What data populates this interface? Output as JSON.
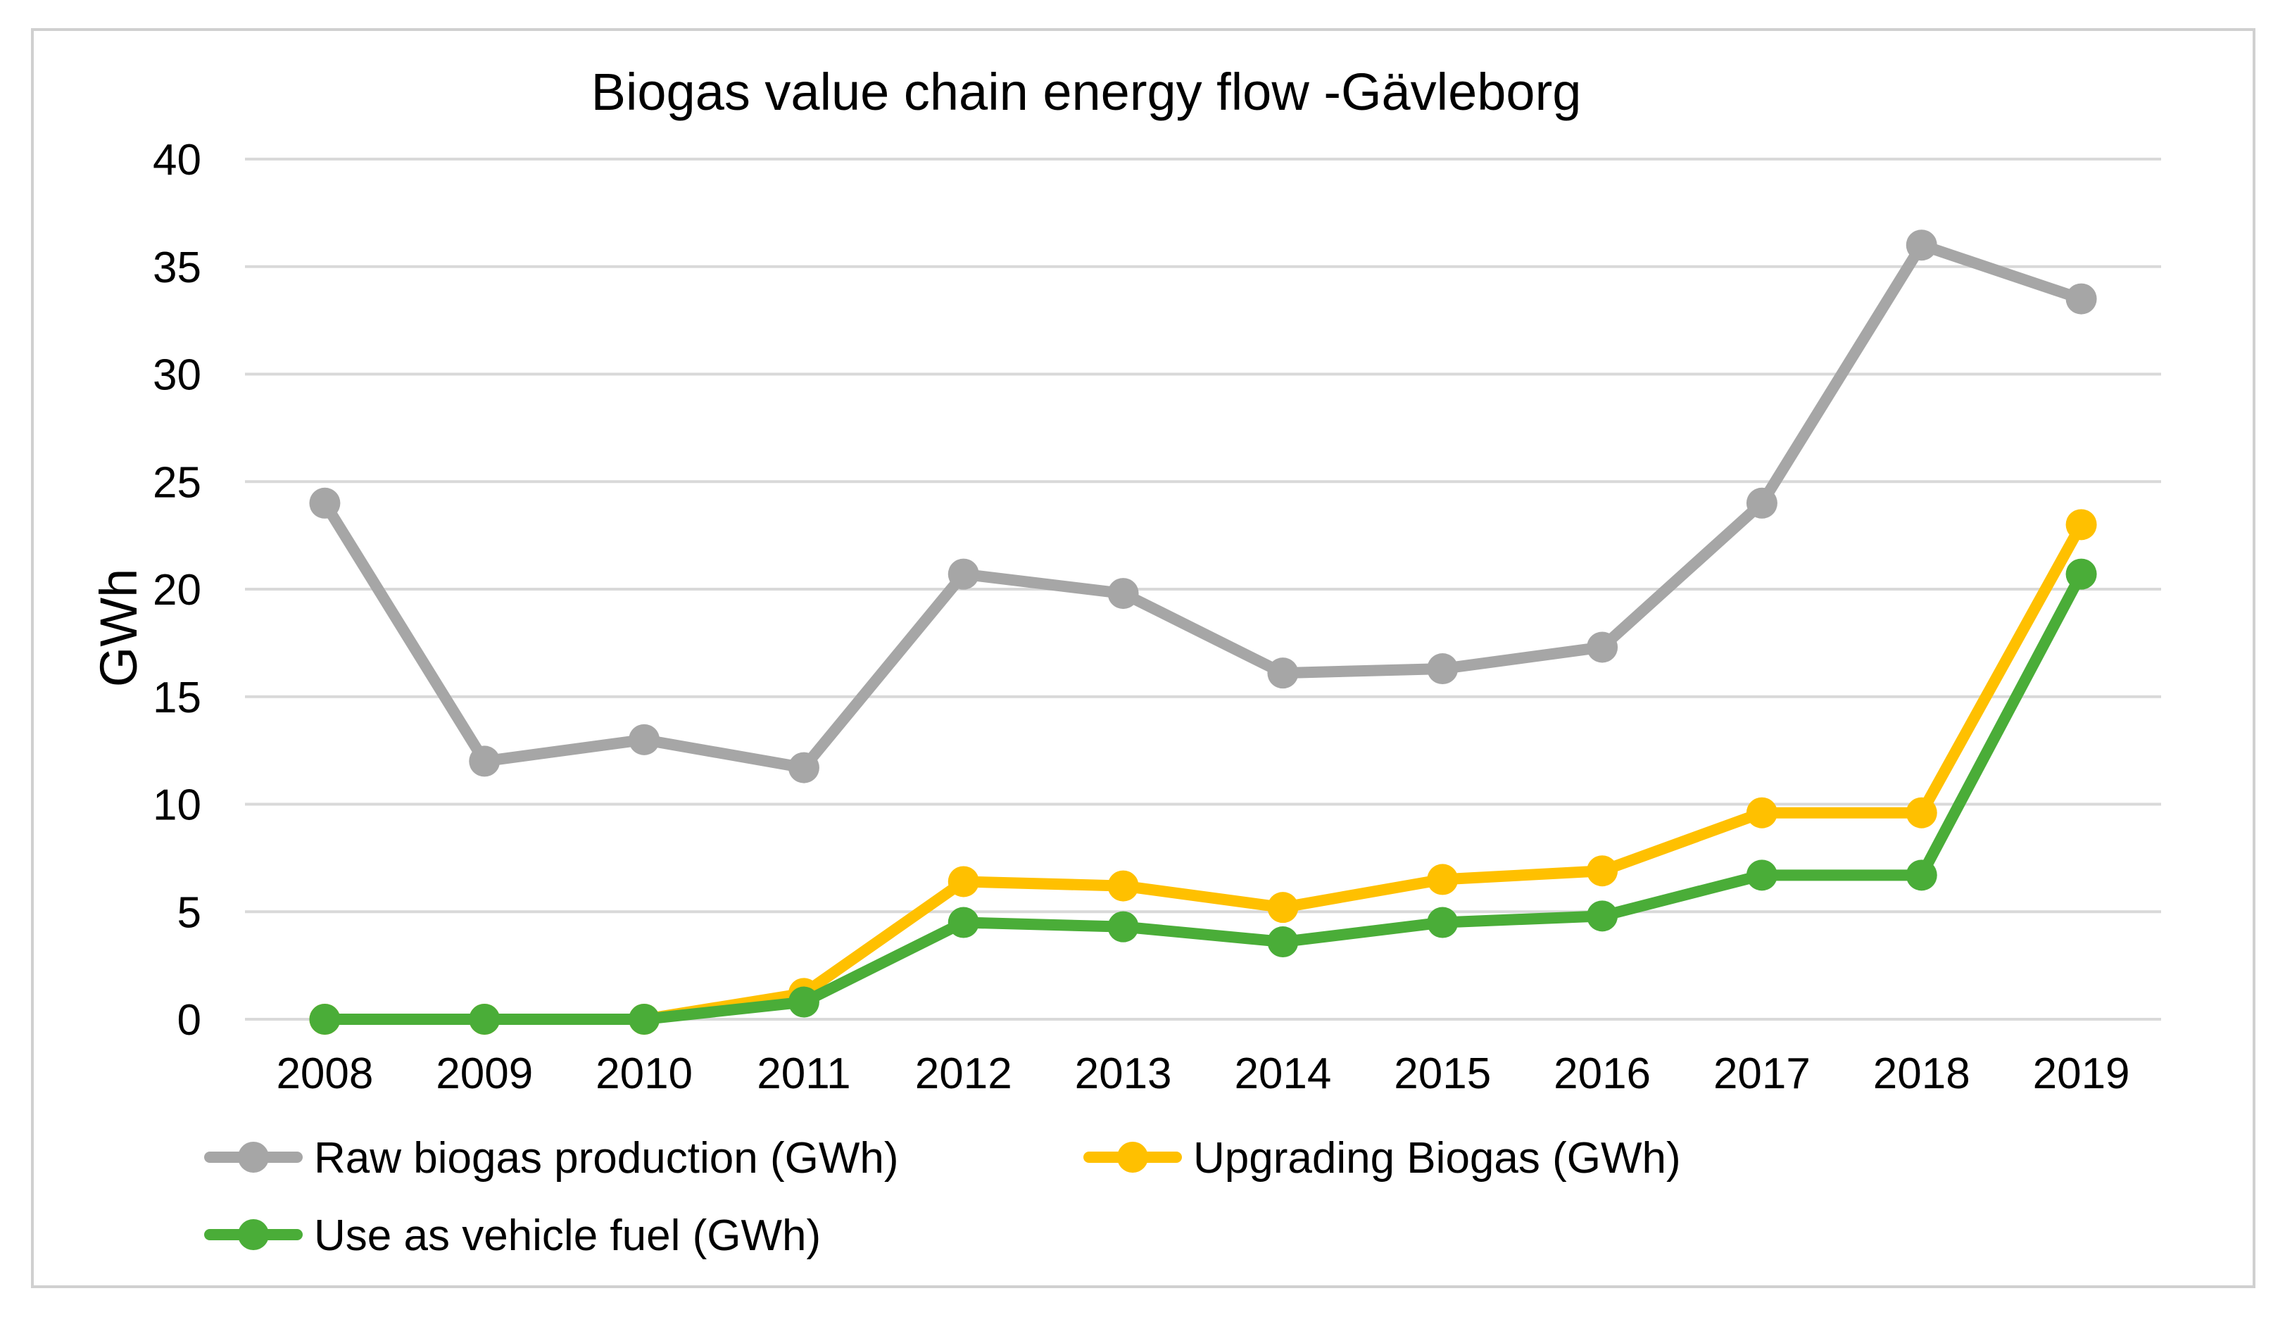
{
  "chart_data": {
    "type": "line",
    "title": "Biogas value chain energy flow -Gävleborg",
    "xlabel": "",
    "ylabel": "GWh",
    "ylim": [
      0,
      40
    ],
    "yticks": [
      0,
      5,
      10,
      15,
      20,
      25,
      30,
      35,
      40
    ],
    "grid": true,
    "legend_position": "bottom",
    "categories": [
      "2008",
      "2009",
      "2010",
      "2011",
      "2012",
      "2013",
      "2014",
      "2015",
      "2016",
      "2017",
      "2018",
      "2019"
    ],
    "series": [
      {
        "name": "Raw biogas production (GWh)",
        "color": "#a6a6a6",
        "values": [
          24.0,
          12.0,
          13.0,
          11.7,
          20.7,
          19.8,
          16.1,
          16.3,
          17.3,
          24.0,
          36.0,
          33.5
        ]
      },
      {
        "name": "Upgrading Biogas (GWh)",
        "color": "#ffc000",
        "values": [
          0,
          0,
          0,
          1.2,
          6.4,
          6.2,
          5.2,
          6.5,
          6.9,
          9.6,
          9.6,
          23.0
        ]
      },
      {
        "name": "Use as vehicle fuel (GWh)",
        "color": "#4aad38",
        "values": [
          0,
          0,
          0,
          0.8,
          4.5,
          4.3,
          3.6,
          4.5,
          4.8,
          6.7,
          6.7,
          20.7
        ]
      }
    ]
  }
}
